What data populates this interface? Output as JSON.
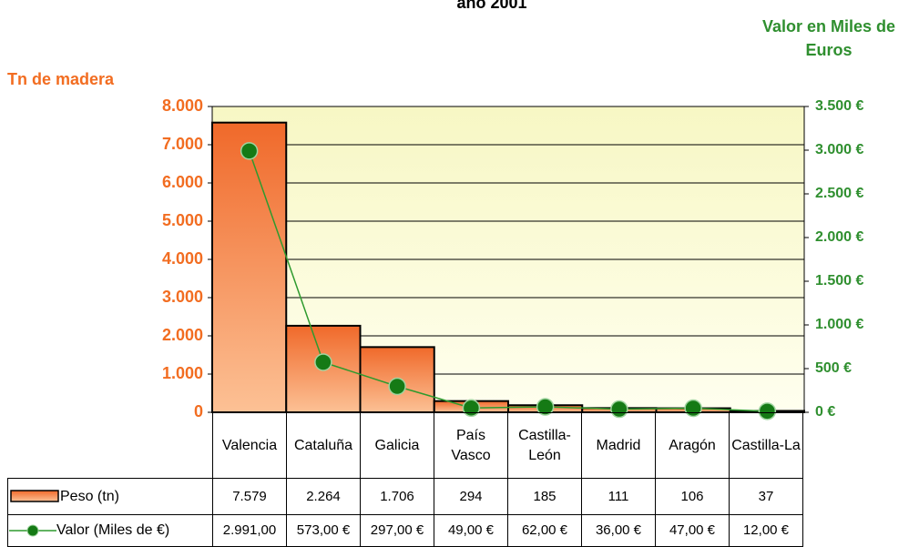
{
  "chart_data": {
    "type": "bar_line_table",
    "title": "año 2001",
    "ylabel": "Tn de madera",
    "y2label": "Valor en Miles de Euros",
    "categories": [
      "Valencia",
      "Cataluña",
      "Galicia",
      "País Vasco",
      "Castilla-León",
      "Madrid",
      "Aragón",
      "Castilla-La"
    ],
    "series": [
      {
        "name": "Peso (tn)",
        "type": "bar",
        "color": "#f47a3c",
        "axis": "y",
        "values": [
          7579,
          2264,
          1706,
          294,
          185,
          111,
          106,
          37
        ],
        "value_labels": [
          "7.579",
          "2.264",
          "1.706",
          "294",
          "185",
          "111",
          "106",
          "37"
        ]
      },
      {
        "name": "Valor (Miles de €)",
        "type": "line",
        "color": "#2e9a2e",
        "axis": "y2",
        "values": [
          2991,
          573,
          297,
          49,
          62,
          36,
          47,
          12
        ],
        "value_labels": [
          "2.991,00",
          "573,00 €",
          "297,00 €",
          "49,00 €",
          "62,00 €",
          "36,00 €",
          "47,00 €",
          "12,00 €"
        ]
      }
    ],
    "ylim": [
      0,
      8000
    ],
    "yticks": [
      0,
      {
        "value": 1000,
        "label": "1.000"
      },
      {
        "value": 2000,
        "label": "2.000"
      },
      {
        "value": 3000,
        "label": "3.000"
      },
      {
        "value": 4000,
        "label": "4.000"
      },
      {
        "value": 5000,
        "label": "5.000"
      },
      {
        "value": 6000,
        "label": "6.000"
      },
      {
        "value": 7000,
        "label": "7.000"
      },
      {
        "value": 8000,
        "label": "8.000"
      }
    ],
    "y2lim": [
      0,
      3500
    ],
    "y2ticks": [
      {
        "value": 0,
        "label": "0 €"
      },
      {
        "value": 500,
        "label": "500 €"
      },
      {
        "value": 1000,
        "label": "1.000 €"
      },
      {
        "value": 1500,
        "label": "1.500 €"
      },
      {
        "value": 2000,
        "label": "2.000 €"
      },
      {
        "value": 2500,
        "label": "2.500 €"
      },
      {
        "value": 3000,
        "label": "3.000 €"
      },
      {
        "value": 3500,
        "label": "3.500 €"
      }
    ],
    "grid": true
  }
}
